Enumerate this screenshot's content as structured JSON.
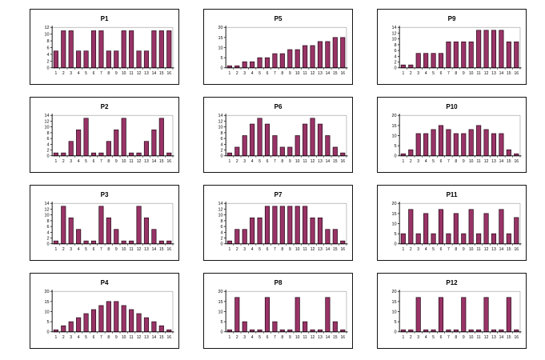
{
  "page": {
    "background": "#ffffff"
  },
  "style": {
    "bar_fill": "#993366",
    "bar_stroke": "#240a18",
    "axis_color": "#000000",
    "grid_color": "#aaaaaa",
    "text_color": "#000000",
    "title_color": "#000000",
    "frame_color": "#141414"
  },
  "chart_data": [
    {
      "name": "P1",
      "type": "bar",
      "title": "P1",
      "categories": [
        "1",
        "2",
        "3",
        "4",
        "5",
        "6",
        "7",
        "8",
        "9",
        "10",
        "11",
        "12",
        "13",
        "14",
        "15",
        "16"
      ],
      "values": [
        5,
        11,
        11,
        5,
        5,
        11,
        11,
        5,
        5,
        11,
        11,
        5,
        5,
        11,
        11,
        11
      ],
      "xlabel": "",
      "ylabel": "",
      "ylim": [
        0,
        12
      ],
      "ytick_step": 2,
      "legend": "none",
      "grid": "top-border-only"
    },
    {
      "name": "P2",
      "type": "bar",
      "title": "P2",
      "categories": [
        "1",
        "2",
        "3",
        "4",
        "5",
        "6",
        "7",
        "8",
        "9",
        "10",
        "11",
        "12",
        "13",
        "14",
        "15",
        "16"
      ],
      "values": [
        1,
        1,
        5,
        9,
        13,
        1,
        1,
        5,
        9,
        13,
        1,
        1,
        5,
        9,
        13,
        1
      ],
      "xlabel": "",
      "ylabel": "",
      "ylim": [
        0,
        14
      ],
      "ytick_step": 2,
      "legend": "none",
      "grid": "top-border-only"
    },
    {
      "name": "P3",
      "type": "bar",
      "title": "P3",
      "categories": [
        "1",
        "2",
        "3",
        "4",
        "5",
        "6",
        "7",
        "8",
        "9",
        "10",
        "11",
        "12",
        "13",
        "14",
        "15",
        "16"
      ],
      "values": [
        1,
        13,
        9,
        5,
        1,
        1,
        13,
        9,
        5,
        1,
        1,
        13,
        9,
        5,
        1,
        1
      ],
      "xlabel": "",
      "ylabel": "",
      "ylim": [
        0,
        14
      ],
      "ytick_step": 2,
      "legend": "none",
      "grid": "top-border-only"
    },
    {
      "name": "P4",
      "type": "bar",
      "title": "P4",
      "categories": [
        "1",
        "2",
        "3",
        "4",
        "5",
        "6",
        "7",
        "8",
        "9",
        "10",
        "11",
        "12",
        "13",
        "14",
        "15",
        "16"
      ],
      "values": [
        1,
        3,
        5,
        7,
        9,
        11,
        13,
        15,
        15,
        13,
        11,
        9,
        7,
        5,
        3,
        1
      ],
      "xlabel": "",
      "ylabel": "",
      "ylim": [
        0,
        20
      ],
      "ytick_step": 5,
      "legend": "none",
      "grid": "top-border-only"
    },
    {
      "name": "P5",
      "type": "bar",
      "title": "P5",
      "categories": [
        "1",
        "2",
        "3",
        "4",
        "5",
        "6",
        "7",
        "8",
        "9",
        "10",
        "11",
        "12",
        "13",
        "14",
        "15",
        "16"
      ],
      "values": [
        1,
        1,
        3,
        3,
        5,
        5,
        7,
        7,
        9,
        9,
        11,
        11,
        13,
        13,
        15,
        15
      ],
      "xlabel": "",
      "ylabel": "",
      "ylim": [
        0,
        20
      ],
      "ytick_step": 5,
      "legend": "none",
      "grid": "top-border-only"
    },
    {
      "name": "P6",
      "type": "bar",
      "title": "P6",
      "categories": [
        "1",
        "2",
        "3",
        "4",
        "5",
        "6",
        "7",
        "8",
        "9",
        "10",
        "11",
        "12",
        "13",
        "14",
        "15",
        "16"
      ],
      "values": [
        1,
        3,
        7,
        11,
        13,
        11,
        7,
        3,
        3,
        7,
        11,
        13,
        11,
        7,
        3,
        1
      ],
      "xlabel": "",
      "ylabel": "",
      "ylim": [
        0,
        14
      ],
      "ytick_step": 2,
      "legend": "none",
      "grid": "top-border-only"
    },
    {
      "name": "P7",
      "type": "bar",
      "title": "P7",
      "categories": [
        "1",
        "2",
        "3",
        "4",
        "5",
        "6",
        "7",
        "8",
        "9",
        "10",
        "11",
        "12",
        "13",
        "14",
        "15",
        "16"
      ],
      "values": [
        1,
        5,
        5,
        9,
        9,
        13,
        13,
        13,
        13,
        13,
        13,
        9,
        9,
        5,
        5,
        1
      ],
      "xlabel": "",
      "ylabel": "",
      "ylim": [
        0,
        14
      ],
      "ytick_step": 2,
      "legend": "none",
      "grid": "top-border-only"
    },
    {
      "name": "P8",
      "type": "bar",
      "title": "P8",
      "categories": [
        "1",
        "2",
        "3",
        "4",
        "5",
        "6",
        "7",
        "8",
        "9",
        "10",
        "11",
        "12",
        "13",
        "14",
        "15",
        "16"
      ],
      "values": [
        1,
        17,
        5,
        1,
        1,
        17,
        5,
        1,
        1,
        17,
        5,
        1,
        1,
        17,
        5,
        1
      ],
      "xlabel": "",
      "ylabel": "",
      "ylim": [
        0,
        20
      ],
      "ytick_step": 5,
      "legend": "none",
      "grid": "top-border-only"
    },
    {
      "name": "P9",
      "type": "bar",
      "title": "P9",
      "categories": [
        "1",
        "2",
        "3",
        "4",
        "5",
        "6",
        "7",
        "8",
        "9",
        "10",
        "11",
        "12",
        "13",
        "14",
        "15",
        "16"
      ],
      "values": [
        1,
        1,
        5,
        5,
        5,
        5,
        9,
        9,
        9,
        9,
        13,
        13,
        13,
        13,
        9,
        9
      ],
      "xlabel": "",
      "ylabel": "",
      "ylim": [
        0,
        14
      ],
      "ytick_step": 2,
      "legend": "none",
      "grid": "top-border-only"
    },
    {
      "name": "P10",
      "type": "bar",
      "title": "P10",
      "categories": [
        "1",
        "2",
        "3",
        "4",
        "5",
        "6",
        "7",
        "8",
        "9",
        "10",
        "11",
        "12",
        "13",
        "14",
        "15",
        "16"
      ],
      "values": [
        1,
        3,
        11,
        11,
        13,
        15,
        13,
        11,
        11,
        13,
        15,
        13,
        11,
        11,
        3,
        1
      ],
      "xlabel": "",
      "ylabel": "",
      "ylim": [
        0,
        20
      ],
      "ytick_step": 5,
      "legend": "none",
      "grid": "top-border-only"
    },
    {
      "name": "P11",
      "type": "bar",
      "title": "P11",
      "categories": [
        "1",
        "2",
        "3",
        "4",
        "5",
        "6",
        "7",
        "8",
        "9",
        "10",
        "11",
        "12",
        "13",
        "14",
        "15",
        "16"
      ],
      "values": [
        5,
        17,
        5,
        15,
        5,
        17,
        5,
        15,
        5,
        17,
        5,
        15,
        5,
        17,
        5,
        13
      ],
      "xlabel": "",
      "ylabel": "",
      "ylim": [
        0,
        20
      ],
      "ytick_step": 5,
      "legend": "none",
      "grid": "top-border-only"
    },
    {
      "name": "P12",
      "type": "bar",
      "title": "P12",
      "categories": [
        "1",
        "2",
        "3",
        "4",
        "5",
        "6",
        "7",
        "8",
        "9",
        "10",
        "11",
        "12",
        "13",
        "14",
        "15",
        "16"
      ],
      "values": [
        1,
        1,
        17,
        1,
        1,
        17,
        1,
        1,
        17,
        1,
        1,
        17,
        1,
        1,
        17,
        1
      ],
      "xlabel": "",
      "ylabel": "",
      "ylim": [
        0,
        20
      ],
      "ytick_step": 5,
      "legend": "none",
      "grid": "top-border-only"
    }
  ]
}
